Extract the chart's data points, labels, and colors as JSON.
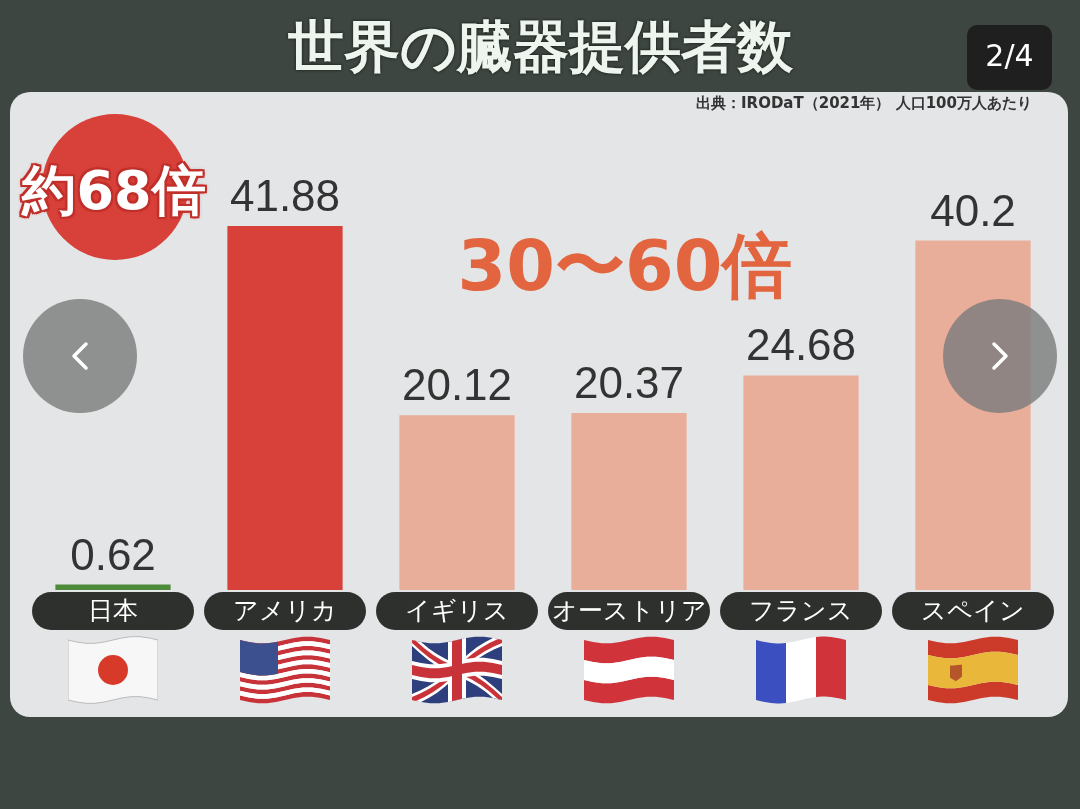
{
  "chart_data": {
    "type": "bar",
    "title": "世界の臓器提供者数",
    "categories": [
      "日本",
      "アメリカ",
      "イギリス",
      "オーストリア",
      "フランス",
      "スペイン"
    ],
    "values": [
      0.62,
      41.88,
      20.12,
      20.37,
      24.68,
      40.2
    ],
    "colors": [
      "#4e8c3c",
      "#d8403a",
      "#e9ae99",
      "#e9ae99",
      "#e9ae99",
      "#e9ae99"
    ],
    "data_labels": true,
    "tick_labels": "x",
    "annotations": [
      "出典：IRODaT（2021年） 人口100万人あたり",
      "約68倍",
      "30〜60倍",
      "2/4"
    ]
  }
}
